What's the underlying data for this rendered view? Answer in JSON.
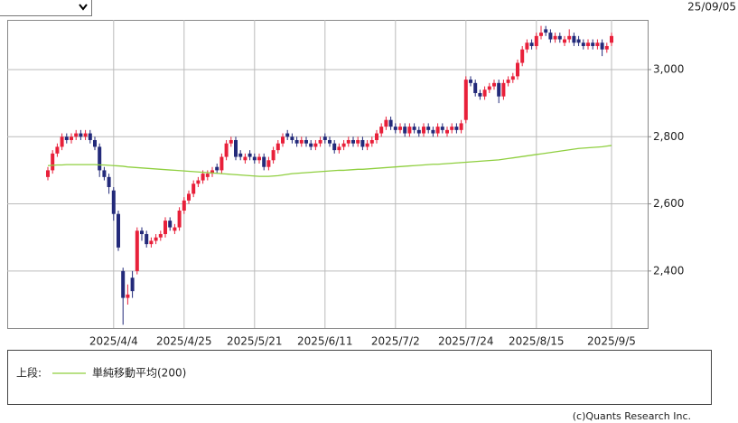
{
  "header": {
    "date": "25/09/05"
  },
  "footer": {
    "credit": "(c)Quants Research Inc."
  },
  "legend": {
    "label": "上段:"
  },
  "chart_data": {
    "type": "candlestick",
    "categories": [
      null,
      null,
      null,
      null,
      null,
      null,
      null,
      null,
      null,
      null,
      null,
      null,
      null,
      null,
      "2025/4/4",
      null,
      null,
      null,
      null,
      null,
      null,
      null,
      null,
      null,
      null,
      null,
      null,
      null,
      null,
      "2025/4/25",
      null,
      null,
      null,
      null,
      null,
      null,
      null,
      null,
      null,
      null,
      null,
      null,
      null,
      null,
      "2025/5/21",
      null,
      null,
      null,
      null,
      null,
      null,
      null,
      null,
      null,
      null,
      null,
      null,
      null,
      null,
      "2025/6/11",
      null,
      null,
      null,
      null,
      null,
      null,
      null,
      null,
      null,
      null,
      null,
      null,
      null,
      null,
      "2025/7/2",
      null,
      null,
      null,
      null,
      null,
      null,
      null,
      null,
      null,
      null,
      null,
      null,
      null,
      null,
      "2025/7/24",
      null,
      null,
      null,
      null,
      null,
      null,
      null,
      null,
      null,
      null,
      null,
      null,
      null,
      null,
      "2025/8/15",
      null,
      null,
      null,
      null,
      null,
      null,
      null,
      null,
      null,
      null,
      null,
      null,
      null,
      null,
      null,
      "2025/9/5"
    ],
    "open": [
      2680,
      2700,
      2750,
      2770,
      2800,
      2790,
      2800,
      2810,
      2800,
      2810,
      2790,
      2770,
      2700,
      2680,
      2640,
      2570,
      2400,
      2320,
      2380,
      2400,
      2520,
      2510,
      2480,
      2490,
      2500,
      2510,
      2550,
      2520,
      2530,
      2580,
      2610,
      2630,
      2660,
      2670,
      2680,
      2690,
      2710,
      2700,
      2740,
      2780,
      2790,
      2750,
      2730,
      2750,
      2740,
      2730,
      2740,
      2710,
      2730,
      2760,
      2780,
      2810,
      2800,
      2790,
      2780,
      2790,
      2780,
      2770,
      2780,
      2800,
      2790,
      2780,
      2760,
      2770,
      2780,
      2790,
      2780,
      2790,
      2770,
      2780,
      2790,
      2810,
      2830,
      2850,
      2830,
      2820,
      2830,
      2810,
      2830,
      2820,
      2810,
      2830,
      2820,
      2810,
      2830,
      2810,
      2820,
      2830,
      2820,
      2850,
      2970,
      2960,
      2930,
      2920,
      2940,
      2950,
      2960,
      2920,
      2960,
      2970,
      2980,
      3020,
      3060,
      3080,
      3070,
      3100,
      3120,
      3110,
      3090,
      3100,
      3080,
      3090,
      3100,
      3090,
      3080,
      3070,
      3080,
      3070,
      3080,
      3060,
      3080
    ],
    "high": [
      2710,
      2760,
      2780,
      2810,
      2810,
      2810,
      2820,
      2820,
      2820,
      2820,
      2800,
      2780,
      2710,
      2690,
      2650,
      2580,
      2410,
      2360,
      2400,
      2530,
      2530,
      2520,
      2500,
      2510,
      2520,
      2560,
      2560,
      2540,
      2590,
      2620,
      2640,
      2670,
      2680,
      2700,
      2700,
      2710,
      2720,
      2750,
      2790,
      2800,
      2800,
      2760,
      2750,
      2760,
      2750,
      2750,
      2750,
      2740,
      2770,
      2790,
      2810,
      2820,
      2810,
      2800,
      2800,
      2800,
      2790,
      2790,
      2800,
      2810,
      2800,
      2790,
      2780,
      2790,
      2800,
      2800,
      2800,
      2800,
      2790,
      2800,
      2820,
      2840,
      2860,
      2860,
      2840,
      2840,
      2840,
      2840,
      2840,
      2830,
      2840,
      2840,
      2830,
      2840,
      2840,
      2830,
      2840,
      2840,
      2850,
      2980,
      2980,
      2970,
      2940,
      2950,
      2960,
      2970,
      2970,
      2970,
      2980,
      2990,
      3030,
      3070,
      3090,
      3090,
      3110,
      3130,
      3130,
      3120,
      3110,
      3110,
      3100,
      3120,
      3110,
      3100,
      3090,
      3090,
      3090,
      3090,
      3090,
      3080,
      3110
    ],
    "low": [
      2670,
      2690,
      2740,
      2760,
      2780,
      2780,
      2790,
      2790,
      2790,
      2780,
      2760,
      2680,
      2670,
      2630,
      2550,
      2460,
      2240,
      2300,
      2320,
      2390,
      2490,
      2470,
      2470,
      2480,
      2490,
      2500,
      2520,
      2510,
      2520,
      2570,
      2600,
      2620,
      2650,
      2660,
      2670,
      2680,
      2690,
      2690,
      2730,
      2770,
      2730,
      2730,
      2720,
      2730,
      2720,
      2720,
      2700,
      2700,
      2720,
      2750,
      2770,
      2790,
      2780,
      2770,
      2770,
      2770,
      2760,
      2760,
      2770,
      2780,
      2770,
      2750,
      2750,
      2760,
      2770,
      2770,
      2770,
      2760,
      2760,
      2770,
      2780,
      2800,
      2820,
      2820,
      2810,
      2810,
      2800,
      2800,
      2810,
      2800,
      2800,
      2810,
      2800,
      2800,
      2810,
      2800,
      2810,
      2810,
      2810,
      2840,
      2950,
      2920,
      2910,
      2910,
      2930,
      2940,
      2900,
      2910,
      2950,
      2960,
      2970,
      3010,
      3050,
      3060,
      3060,
      3090,
      3100,
      3080,
      3080,
      3080,
      3070,
      3080,
      3070,
      3070,
      3060,
      3060,
      3060,
      3060,
      3040,
      3050,
      3070
    ],
    "close": [
      2700,
      2750,
      2770,
      2800,
      2790,
      2800,
      2810,
      2800,
      2810,
      2790,
      2770,
      2700,
      2680,
      2650,
      2570,
      2470,
      2320,
      2330,
      2340,
      2520,
      2510,
      2480,
      2490,
      2500,
      2510,
      2550,
      2530,
      2530,
      2580,
      2610,
      2630,
      2660,
      2670,
      2690,
      2690,
      2700,
      2700,
      2740,
      2780,
      2790,
      2740,
      2740,
      2740,
      2740,
      2730,
      2740,
      2710,
      2730,
      2760,
      2780,
      2800,
      2800,
      2790,
      2780,
      2790,
      2780,
      2770,
      2780,
      2790,
      2790,
      2780,
      2760,
      2770,
      2780,
      2790,
      2780,
      2790,
      2770,
      2780,
      2790,
      2810,
      2830,
      2850,
      2830,
      2820,
      2830,
      2810,
      2830,
      2820,
      2810,
      2830,
      2820,
      2810,
      2830,
      2820,
      2820,
      2830,
      2820,
      2840,
      2970,
      2960,
      2930,
      2920,
      2940,
      2950,
      2960,
      2920,
      2960,
      2970,
      2980,
      3020,
      3060,
      3080,
      3070,
      3100,
      3110,
      3110,
      3090,
      3100,
      3090,
      3090,
      3100,
      3080,
      3080,
      3070,
      3080,
      3070,
      3080,
      3060,
      3070,
      3100
    ],
    "up_color": "#e8203a",
    "down_color": "#232a7a",
    "series": [
      {
        "name": "単純移動平均(200)",
        "color": "#8fcf3f",
        "values": [
          2714,
          2715,
          2716,
          2716,
          2717,
          2717,
          2717,
          2717,
          2717,
          2717,
          2717,
          2716,
          2716,
          2715,
          2714,
          2713,
          2712,
          2710,
          2709,
          2708,
          2707,
          2706,
          2705,
          2704,
          2703,
          2702,
          2701,
          2700,
          2699,
          2698,
          2697,
          2696,
          2695,
          2694,
          2693,
          2692,
          2691,
          2690,
          2689,
          2688,
          2687,
          2686,
          2685,
          2684,
          2683,
          2682,
          2682,
          2682,
          2683,
          2684,
          2686,
          2688,
          2690,
          2691,
          2692,
          2693,
          2694,
          2695,
          2696,
          2697,
          2698,
          2699,
          2700,
          2700,
          2701,
          2702,
          2703,
          2703,
          2704,
          2705,
          2706,
          2707,
          2708,
          2709,
          2710,
          2711,
          2712,
          2713,
          2714,
          2715,
          2716,
          2717,
          2718,
          2718,
          2719,
          2720,
          2721,
          2722,
          2723,
          2724,
          2725,
          2726,
          2727,
          2728,
          2729,
          2730,
          2731,
          2733,
          2735,
          2737,
          2739,
          2741,
          2743,
          2745,
          2747,
          2749,
          2751,
          2753,
          2755,
          2757,
          2759,
          2761,
          2763,
          2765,
          2766,
          2767,
          2768,
          2769,
          2770,
          2772,
          2774
        ]
      }
    ],
    "ylim": [
      2230,
      3148
    ],
    "yticks": [
      {
        "value": 2400,
        "label": "2,400"
      },
      {
        "value": 2600,
        "label": "2,600"
      },
      {
        "value": 2800,
        "label": "2,800"
      },
      {
        "value": 3000,
        "label": "3,000"
      }
    ],
    "grid": true
  }
}
